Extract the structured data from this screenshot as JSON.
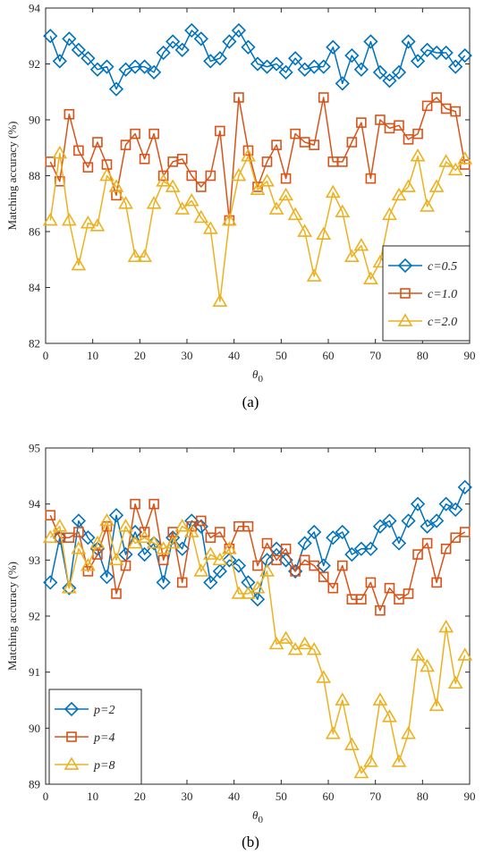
{
  "chart_data": [
    {
      "type": "line",
      "panel_label": "(a)",
      "xlabel": "θ0",
      "ylabel": "Matching accuracy (%)",
      "xlim": [
        0,
        90
      ],
      "ylim": [
        82,
        94
      ],
      "xticks": [
        0,
        10,
        20,
        30,
        40,
        50,
        60,
        70,
        80,
        90
      ],
      "yticks": [
        82,
        84,
        86,
        88,
        90,
        92,
        94
      ],
      "grid": false,
      "legend_position": "bottom-right",
      "x": [
        1,
        3,
        5,
        7,
        9,
        11,
        13,
        15,
        17,
        19,
        21,
        23,
        25,
        27,
        29,
        31,
        33,
        35,
        37,
        39,
        41,
        43,
        45,
        47,
        49,
        51,
        53,
        55,
        57,
        59,
        61,
        63,
        65,
        67,
        69,
        71,
        73,
        75,
        77,
        79,
        81,
        83,
        85,
        87,
        89
      ],
      "series": [
        {
          "name": "c=0.5",
          "color": "#0072BD",
          "marker": "diamond",
          "values": [
            93.0,
            92.1,
            92.9,
            92.5,
            92.2,
            91.8,
            91.9,
            91.1,
            91.8,
            91.9,
            91.9,
            91.7,
            92.4,
            92.8,
            92.5,
            93.2,
            92.9,
            92.1,
            92.2,
            92.8,
            93.2,
            92.6,
            92.0,
            91.9,
            92.0,
            91.7,
            92.2,
            91.8,
            91.9,
            91.9,
            92.6,
            91.3,
            92.3,
            91.8,
            92.8,
            91.7,
            91.4,
            91.7,
            92.8,
            92.1,
            92.5,
            92.4,
            92.4,
            91.9,
            92.3
          ]
        },
        {
          "name": "c=1.0",
          "color": "#D95319",
          "marker": "square",
          "values": [
            88.5,
            87.8,
            90.2,
            88.9,
            88.3,
            89.2,
            88.4,
            87.3,
            89.1,
            89.5,
            88.6,
            89.5,
            88.0,
            88.5,
            88.6,
            88.0,
            87.6,
            88.0,
            89.6,
            86.4,
            90.8,
            88.9,
            87.6,
            88.5,
            89.1,
            87.9,
            89.5,
            89.2,
            89.1,
            90.8,
            88.5,
            88.5,
            89.2,
            89.9,
            87.9,
            90.0,
            89.7,
            89.8,
            89.3,
            89.5,
            90.5,
            90.8,
            90.4,
            90.3,
            88.4
          ]
        },
        {
          "name": "c=2.0",
          "color": "#EDB120",
          "marker": "triangle",
          "values": [
            86.4,
            88.8,
            86.4,
            84.8,
            86.3,
            86.2,
            88.0,
            87.6,
            87.0,
            85.1,
            85.1,
            87.0,
            87.8,
            87.6,
            86.8,
            87.1,
            86.5,
            86.1,
            83.5,
            86.4,
            88.0,
            88.7,
            87.5,
            87.8,
            86.8,
            87.3,
            86.6,
            86.0,
            84.4,
            85.9,
            87.4,
            86.7,
            85.1,
            85.5,
            84.3,
            84.9,
            86.6,
            87.3,
            87.6,
            88.7,
            86.9,
            87.6,
            88.5,
            88.2,
            88.6
          ]
        }
      ]
    },
    {
      "type": "line",
      "panel_label": "(b)",
      "xlabel": "θ0",
      "ylabel": "Matching accuracy (%)",
      "xlim": [
        0,
        90
      ],
      "ylim": [
        89,
        95
      ],
      "xticks": [
        0,
        10,
        20,
        30,
        40,
        50,
        60,
        70,
        80,
        90
      ],
      "yticks": [
        89,
        90,
        91,
        92,
        93,
        94,
        95
      ],
      "grid": false,
      "legend_position": "bottom-left",
      "x": [
        1,
        3,
        5,
        7,
        9,
        11,
        13,
        15,
        17,
        19,
        21,
        23,
        25,
        27,
        29,
        31,
        33,
        35,
        37,
        39,
        41,
        43,
        45,
        47,
        49,
        51,
        53,
        55,
        57,
        59,
        61,
        63,
        65,
        67,
        69,
        71,
        73,
        75,
        77,
        79,
        81,
        83,
        85,
        87,
        89
      ],
      "series": [
        {
          "name": "p=2",
          "color": "#0072BD",
          "marker": "diamond",
          "values": [
            92.6,
            93.4,
            92.5,
            93.7,
            93.4,
            93.2,
            92.7,
            93.8,
            93.1,
            93.5,
            93.1,
            93.3,
            92.6,
            93.4,
            93.2,
            93.7,
            93.6,
            92.6,
            92.8,
            93.0,
            92.9,
            92.6,
            92.3,
            93.0,
            93.2,
            93.0,
            92.8,
            93.3,
            93.5,
            92.9,
            93.4,
            93.5,
            93.1,
            93.2,
            93.2,
            93.6,
            93.7,
            93.3,
            93.7,
            94.0,
            93.6,
            93.7,
            94.0,
            93.9,
            94.3
          ]
        },
        {
          "name": "p=4",
          "color": "#D95319",
          "marker": "square",
          "values": [
            93.8,
            93.4,
            93.4,
            93.5,
            92.8,
            93.1,
            93.6,
            92.4,
            92.9,
            94.0,
            93.5,
            94.0,
            93.0,
            93.5,
            92.6,
            93.6,
            93.7,
            93.4,
            93.5,
            93.2,
            93.6,
            93.6,
            92.9,
            93.3,
            93.0,
            93.2,
            92.8,
            93.0,
            92.9,
            92.7,
            92.5,
            92.9,
            92.3,
            92.3,
            92.6,
            92.1,
            92.5,
            92.3,
            92.4,
            93.1,
            93.3,
            92.6,
            93.2,
            93.4,
            93.5
          ]
        },
        {
          "name": "p=8",
          "color": "#EDB120",
          "marker": "triangle",
          "values": [
            93.4,
            93.6,
            92.5,
            93.2,
            92.9,
            93.3,
            93.7,
            93.0,
            93.6,
            93.3,
            93.4,
            93.3,
            93.2,
            93.3,
            93.6,
            93.5,
            92.8,
            93.1,
            93.0,
            93.2,
            92.4,
            92.4,
            92.5,
            92.8,
            91.5,
            91.6,
            91.4,
            91.5,
            91.4,
            90.9,
            89.9,
            90.5,
            89.7,
            89.2,
            89.4,
            90.5,
            90.2,
            89.4,
            89.9,
            91.3,
            91.1,
            90.4,
            91.8,
            90.8,
            91.3
          ]
        }
      ]
    }
  ]
}
